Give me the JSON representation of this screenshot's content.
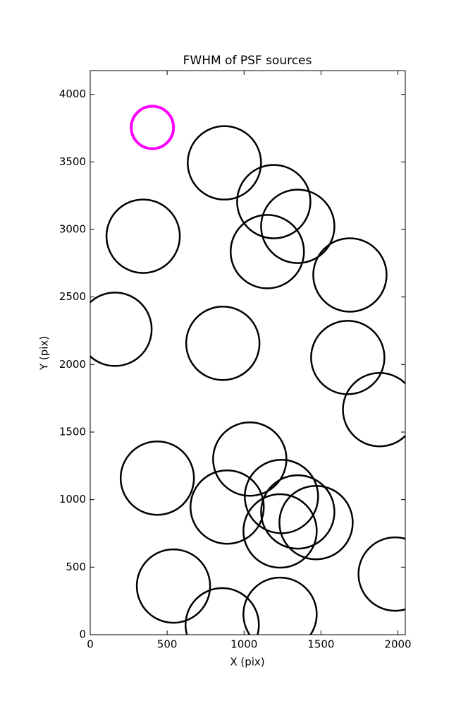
{
  "chart_data": {
    "type": "scatter",
    "title": "FWHM of PSF sources",
    "xlabel": "X (pix)",
    "ylabel": "Y (pix)",
    "x": [
      872,
      1193,
      1349,
      1151,
      1688,
      344,
      161,
      862,
      1674,
      1881,
      436,
      1037,
      890,
      1243,
      1349,
      1234,
      1468,
      1982,
      541,
      858,
      1234
    ],
    "y": [
      3493,
      3206,
      3023,
      2836,
      2663,
      2950,
      2261,
      2157,
      2052,
      1666,
      1159,
      1300,
      945,
      1023,
      909,
      768,
      830,
      449,
      360,
      73,
      151
    ],
    "color": "#000000",
    "highlight": {
      "x": 404,
      "y": 3755,
      "color": "#ff00ff"
    },
    "xlim": [
      0,
      2048
    ],
    "ylim": [
      0,
      4176
    ],
    "xticks": [
      0,
      500,
      1000,
      1500,
      2000
    ],
    "yticks": [
      0,
      500,
      1000,
      1500,
      2000,
      2500,
      3000,
      3500,
      4000
    ]
  }
}
